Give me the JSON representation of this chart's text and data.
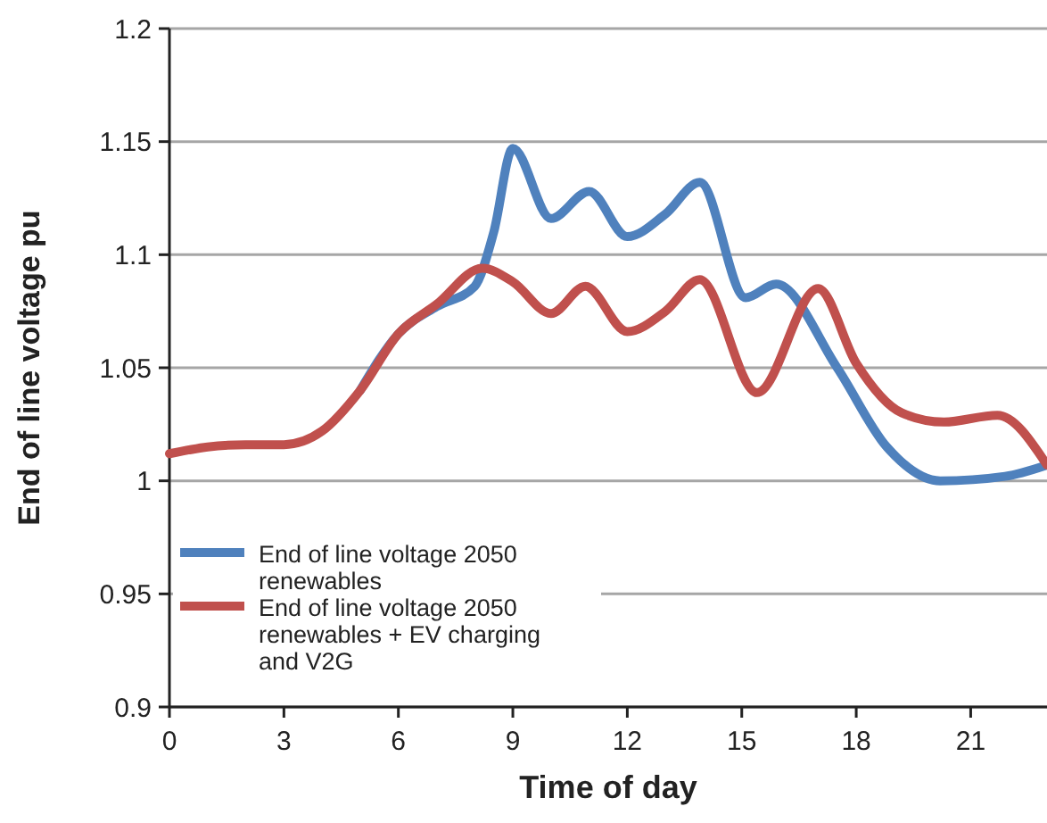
{
  "chart_data": {
    "type": "line",
    "xlabel": "Time of day",
    "ylabel": "End of line voltage pu",
    "xlim": [
      0,
      23
    ],
    "xticks": [
      0,
      3,
      6,
      9,
      12,
      15,
      18,
      21
    ],
    "ylim": [
      0.9,
      1.2
    ],
    "yticks": [
      {
        "value": 0.9,
        "label": "0.9"
      },
      {
        "value": 0.95,
        "label": "0.95"
      },
      {
        "value": 1,
        "label": "1"
      },
      {
        "value": 1.05,
        "label": "1.05"
      },
      {
        "value": 1.1,
        "label": "1.1"
      },
      {
        "value": 1.15,
        "label": "1.15"
      },
      {
        "value": 1.2,
        "label": "1.2"
      }
    ],
    "grid": "y",
    "legend": "bottom left",
    "line_style": "solid",
    "marker": "none",
    "series": [
      {
        "name": "End of line voltage 2050 renewables",
        "color": "#4f81bd",
        "x": [
          5,
          6,
          7,
          8,
          8.5,
          9,
          10,
          11,
          12,
          13,
          13.9,
          15.1,
          15.9,
          17.5,
          18.8,
          20.2,
          21.9,
          23
        ],
        "values": [
          1.04,
          1.065,
          1.077,
          1.086,
          1.11,
          1.147,
          1.116,
          1.128,
          1.108,
          1.118,
          1.132,
          1.081,
          1.087,
          1.05,
          1.015,
          1.0,
          1.002,
          1.007
        ]
      },
      {
        "name": "End of line voltage 2050 renewables + EV charging and V2G",
        "color": "#c0504d",
        "x": [
          0,
          1,
          2,
          3,
          4,
          5,
          6,
          7,
          8.2,
          9,
          10,
          10.9,
          12,
          13,
          13.9,
          15.4,
          17,
          18,
          19.2,
          20.3,
          21.7,
          23
        ],
        "values": [
          1.012,
          1.015,
          1.016,
          1.016,
          1.022,
          1.04,
          1.065,
          1.078,
          1.094,
          1.088,
          1.074,
          1.086,
          1.066,
          1.075,
          1.089,
          1.039,
          1.085,
          1.052,
          1.03,
          1.026,
          1.029,
          1.007
        ]
      }
    ]
  }
}
